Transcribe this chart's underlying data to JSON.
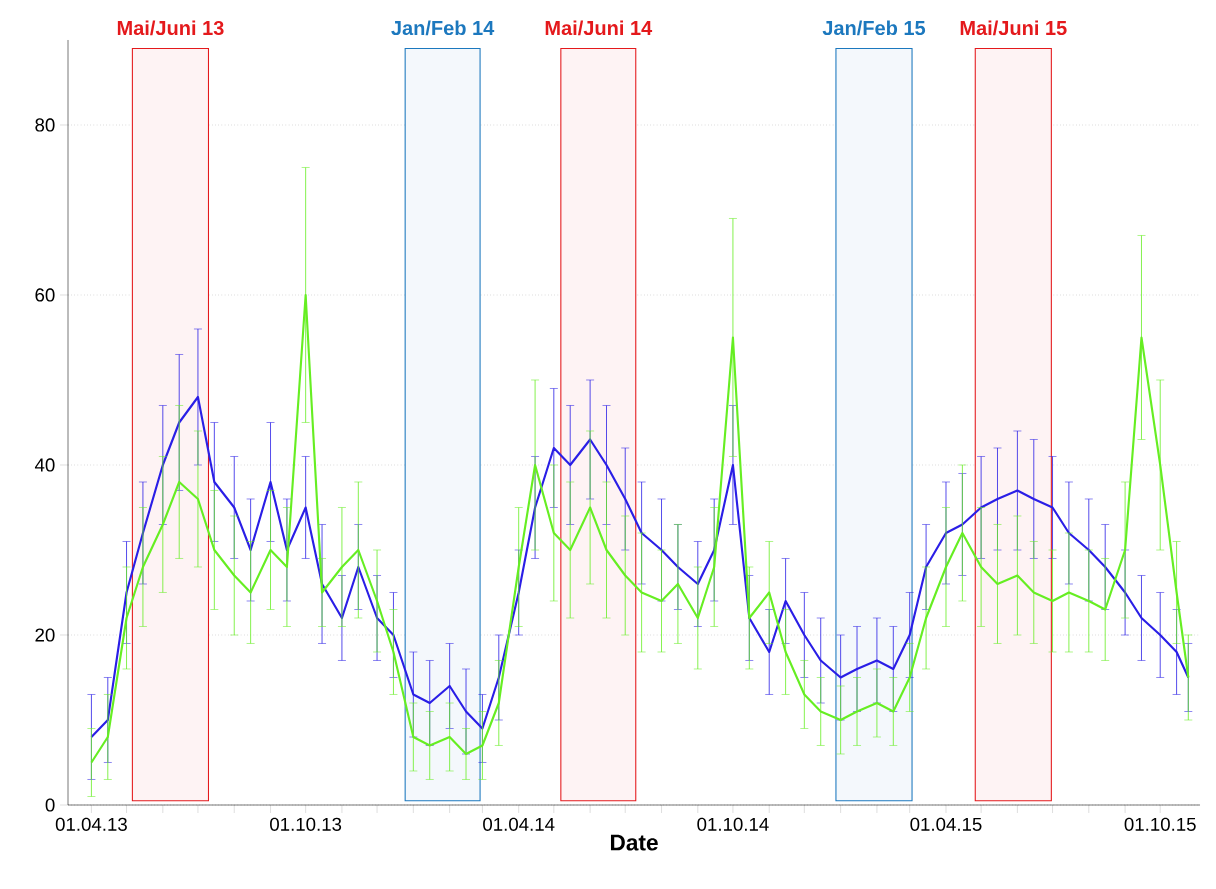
{
  "chart_data": {
    "type": "line",
    "xlabel": "Date",
    "xlim": [
      "2013-03-12",
      "2015-11-04"
    ],
    "ylim": [
      0,
      90
    ],
    "xticks": [
      {
        "value": "2013-04-01",
        "label": "01.04.13"
      },
      {
        "value": "2013-05-01",
        "label": null
      },
      {
        "value": "2013-06-01",
        "label": null
      },
      {
        "value": "2013-07-01",
        "label": null
      },
      {
        "value": "2013-08-01",
        "label": null
      },
      {
        "value": "2013-09-01",
        "label": null
      },
      {
        "value": "2013-10-01",
        "label": "01.10.13"
      },
      {
        "value": "2013-11-01",
        "label": null
      },
      {
        "value": "2013-12-01",
        "label": null
      },
      {
        "value": "2014-01-01",
        "label": null
      },
      {
        "value": "2014-02-01",
        "label": null
      },
      {
        "value": "2014-03-01",
        "label": null
      },
      {
        "value": "2014-04-01",
        "label": "01.04.14"
      },
      {
        "value": "2014-05-01",
        "label": null
      },
      {
        "value": "2014-06-01",
        "label": null
      },
      {
        "value": "2014-07-01",
        "label": null
      },
      {
        "value": "2014-08-01",
        "label": null
      },
      {
        "value": "2014-09-01",
        "label": null
      },
      {
        "value": "2014-10-01",
        "label": "01.10.14"
      },
      {
        "value": "2014-11-01",
        "label": null
      },
      {
        "value": "2014-12-01",
        "label": null
      },
      {
        "value": "2015-01-01",
        "label": null
      },
      {
        "value": "2015-02-01",
        "label": null
      },
      {
        "value": "2015-03-01",
        "label": null
      },
      {
        "value": "2015-04-01",
        "label": "01.04.15"
      },
      {
        "value": "2015-05-01",
        "label": null
      },
      {
        "value": "2015-06-01",
        "label": null
      },
      {
        "value": "2015-07-01",
        "label": null
      },
      {
        "value": "2015-08-01",
        "label": null
      },
      {
        "value": "2015-09-01",
        "label": null
      },
      {
        "value": "2015-10-01",
        "label": "01.10.15"
      }
    ],
    "yticks": [
      0,
      20,
      40,
      60,
      80
    ],
    "grid": "y",
    "x": [
      "2013-04-01",
      "2013-04-15",
      "2013-05-01",
      "2013-05-15",
      "2013-06-01",
      "2013-06-15",
      "2013-07-01",
      "2013-07-15",
      "2013-08-01",
      "2013-08-15",
      "2013-09-01",
      "2013-09-15",
      "2013-10-01",
      "2013-10-15",
      "2013-11-01",
      "2013-11-15",
      "2013-12-01",
      "2013-12-15",
      "2014-01-01",
      "2014-01-15",
      "2014-02-01",
      "2014-02-15",
      "2014-03-01",
      "2014-03-15",
      "2014-04-01",
      "2014-04-15",
      "2014-05-01",
      "2014-05-15",
      "2014-06-01",
      "2014-06-15",
      "2014-07-01",
      "2014-07-15",
      "2014-08-01",
      "2014-08-15",
      "2014-09-01",
      "2014-09-15",
      "2014-10-01",
      "2014-10-15",
      "2014-11-01",
      "2014-11-15",
      "2014-12-01",
      "2014-12-15",
      "2015-01-01",
      "2015-01-15",
      "2015-02-01",
      "2015-02-15",
      "2015-03-01",
      "2015-03-15",
      "2015-04-01",
      "2015-04-15",
      "2015-05-01",
      "2015-05-15",
      "2015-06-01",
      "2015-06-15",
      "2015-07-01",
      "2015-07-15",
      "2015-08-01",
      "2015-08-15",
      "2015-09-01",
      "2015-09-15",
      "2015-10-01",
      "2015-10-15",
      "2015-10-25"
    ],
    "series": [
      {
        "color": "#2a1ee6",
        "values": [
          8,
          10,
          25,
          32,
          40,
          45,
          48,
          38,
          35,
          30,
          38,
          30,
          35,
          26,
          22,
          28,
          22,
          20,
          13,
          12,
          14,
          11,
          9,
          15,
          25,
          35,
          42,
          40,
          43,
          40,
          36,
          32,
          30,
          28,
          26,
          30,
          40,
          22,
          18,
          24,
          20,
          17,
          15,
          16,
          17,
          16,
          20,
          28,
          32,
          33,
          35,
          36,
          37,
          36,
          35,
          32,
          30,
          28,
          25,
          22,
          20,
          18,
          15
        ],
        "errors": [
          5,
          5,
          6,
          6,
          7,
          8,
          8,
          7,
          6,
          6,
          7,
          6,
          6,
          7,
          5,
          5,
          5,
          5,
          5,
          5,
          5,
          5,
          4,
          5,
          5,
          6,
          7,
          7,
          7,
          7,
          6,
          6,
          6,
          5,
          5,
          6,
          7,
          5,
          5,
          5,
          5,
          5,
          5,
          5,
          5,
          5,
          5,
          5,
          6,
          6,
          6,
          6,
          7,
          7,
          6,
          6,
          6,
          5,
          5,
          5,
          5,
          5,
          4
        ]
      },
      {
        "color": "#66ee22",
        "values": [
          5,
          8,
          22,
          28,
          33,
          38,
          36,
          30,
          27,
          25,
          30,
          28,
          60,
          25,
          28,
          30,
          24,
          18,
          8,
          7,
          8,
          6,
          7,
          12,
          28,
          40,
          32,
          30,
          35,
          30,
          27,
          25,
          24,
          26,
          22,
          28,
          55,
          22,
          25,
          18,
          13,
          11,
          10,
          11,
          12,
          11,
          15,
          22,
          28,
          32,
          28,
          26,
          27,
          25,
          24,
          25,
          24,
          23,
          30,
          55,
          40,
          25,
          15
        ],
        "errors": [
          4,
          5,
          6,
          7,
          8,
          9,
          8,
          7,
          7,
          6,
          7,
          7,
          15,
          4,
          7,
          8,
          6,
          5,
          4,
          4,
          4,
          3,
          4,
          5,
          7,
          10,
          8,
          8,
          9,
          8,
          7,
          7,
          6,
          7,
          6,
          7,
          14,
          6,
          6,
          5,
          4,
          4,
          4,
          4,
          4,
          4,
          4,
          6,
          7,
          8,
          7,
          7,
          7,
          6,
          6,
          7,
          6,
          6,
          8,
          12,
          10,
          6,
          5
        ]
      }
    ],
    "bands": [
      {
        "axis": "x",
        "from": "2013-05-06",
        "to": "2013-07-10",
        "label": "Mai/Juni 13",
        "color": "#e4191c"
      },
      {
        "axis": "x",
        "from": "2013-12-25",
        "to": "2014-02-27",
        "label": "Jan/Feb 14",
        "color": "#1c78be"
      },
      {
        "axis": "x",
        "from": "2014-05-07",
        "to": "2014-07-10",
        "label": "Mai/Juni 14",
        "color": "#e4191c"
      },
      {
        "axis": "x",
        "from": "2014-12-28",
        "to": "2015-03-03",
        "label": "Jan/Feb 15",
        "color": "#1c78be"
      },
      {
        "axis": "x",
        "from": "2015-04-26",
        "to": "2015-06-30",
        "label": "Mai/Juni 15",
        "color": "#e4191c"
      }
    ]
  }
}
